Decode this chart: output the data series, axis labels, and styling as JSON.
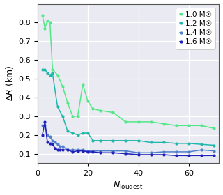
{
  "series": [
    {
      "label": "1.0 M☉",
      "color": "#52e887",
      "x": [
        2,
        3,
        4,
        5,
        6,
        8,
        10,
        12,
        14,
        16,
        18,
        20,
        22,
        25,
        30,
        35,
        40,
        45,
        50,
        55,
        60,
        65,
        70
      ],
      "y": [
        0.84,
        0.77,
        0.81,
        0.8,
        0.55,
        0.52,
        0.46,
        0.37,
        0.3,
        0.3,
        0.47,
        0.38,
        0.34,
        0.33,
        0.32,
        0.27,
        0.27,
        0.27,
        0.26,
        0.25,
        0.25,
        0.25,
        0.235
      ]
    },
    {
      "label": "1.2 M☉",
      "color": "#20b8aa",
      "x": [
        2,
        3,
        4,
        5,
        6,
        8,
        10,
        12,
        14,
        16,
        18,
        20,
        22,
        25,
        30,
        35,
        40,
        45,
        50,
        55,
        60,
        65,
        70
      ],
      "y": [
        0.55,
        0.55,
        0.53,
        0.52,
        0.53,
        0.35,
        0.3,
        0.22,
        0.21,
        0.2,
        0.21,
        0.21,
        0.17,
        0.17,
        0.17,
        0.17,
        0.17,
        0.16,
        0.16,
        0.155,
        0.155,
        0.15,
        0.145
      ]
    },
    {
      "label": "1.4 M☉",
      "color": "#5080cc",
      "x": [
        2,
        3,
        4,
        5,
        6,
        7,
        8,
        9,
        10,
        12,
        14,
        16,
        18,
        20,
        22,
        25,
        30,
        35,
        40,
        45,
        50,
        55,
        60,
        65,
        70
      ],
      "y": [
        0.25,
        0.25,
        0.2,
        0.19,
        0.17,
        0.16,
        0.15,
        0.14,
        0.14,
        0.12,
        0.12,
        0.12,
        0.12,
        0.115,
        0.115,
        0.115,
        0.115,
        0.115,
        0.105,
        0.105,
        0.11,
        0.11,
        0.11,
        0.12,
        0.115
      ]
    },
    {
      "label": "1.6 M☉",
      "color": "#2020bb",
      "x": [
        2,
        3,
        4,
        5,
        6,
        7,
        8,
        9,
        10,
        12,
        14,
        16,
        18,
        20,
        22,
        25,
        30,
        35,
        40,
        45,
        50,
        55,
        60,
        65,
        70
      ],
      "y": [
        0.2,
        0.27,
        0.16,
        0.155,
        0.15,
        0.13,
        0.12,
        0.12,
        0.12,
        0.12,
        0.11,
        0.115,
        0.115,
        0.11,
        0.11,
        0.105,
        0.105,
        0.1,
        0.095,
        0.095,
        0.095,
        0.09,
        0.09,
        0.09,
        0.09
      ]
    }
  ],
  "xlabel": "$N_\\mathrm{loudest}$",
  "ylabel": "$\\Delta R$ (km)",
  "xlim": [
    0,
    72
  ],
  "ylim": [
    0.05,
    0.9
  ],
  "yticks": [
    0.1,
    0.2,
    0.3,
    0.4,
    0.5,
    0.6,
    0.7,
    0.8
  ],
  "xticks": [
    0,
    20,
    40,
    60
  ],
  "background_color": "#eaeaf2",
  "grid_color": "#ffffff",
  "legend_loc": "upper right"
}
